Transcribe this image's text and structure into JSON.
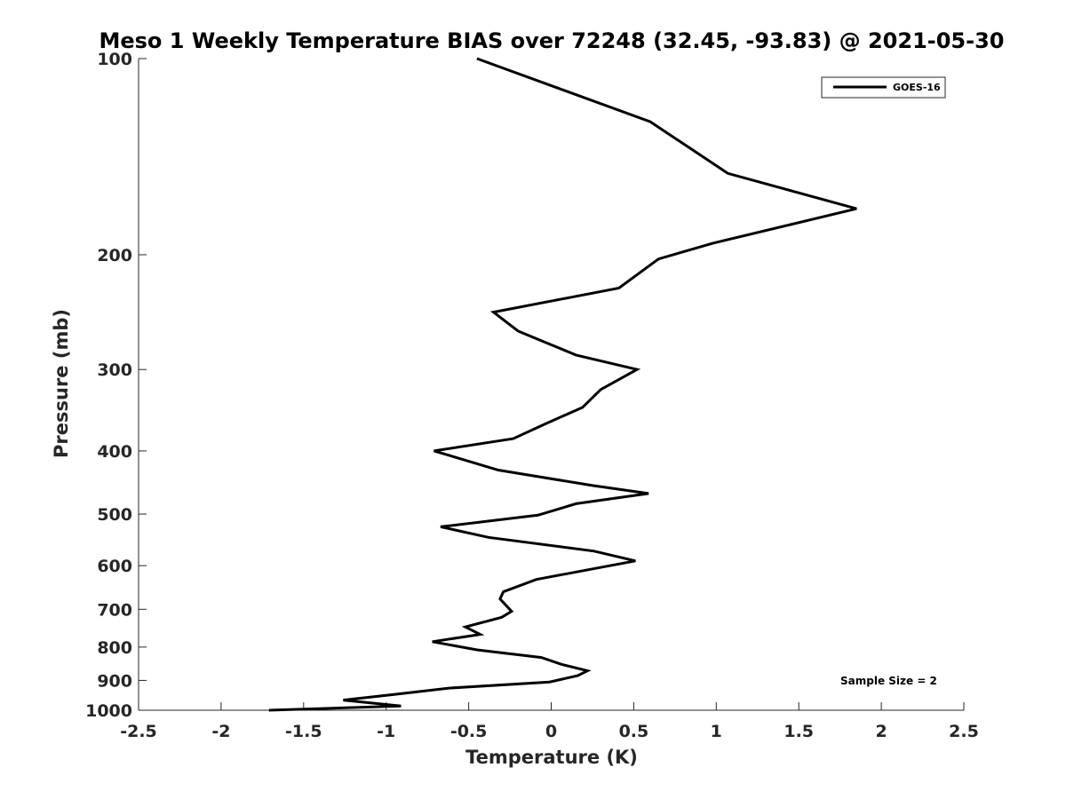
{
  "chart_data": {
    "type": "line",
    "title": "Meso 1 Weekly Temperature BIAS over 72248 (32.45, -93.83) @ 2021-05-30",
    "xlabel": "Temperature (K)",
    "ylabel": "Pressure (mb)",
    "xlim": [
      -2.5,
      2.5
    ],
    "ylim": [
      100,
      1000
    ],
    "y_scale": "log",
    "y_reversed": true,
    "x_ticks": [
      -2.5,
      -2,
      -1.5,
      -1,
      -0.5,
      0,
      0.5,
      1,
      1.5,
      2,
      2.5
    ],
    "x_tick_labels": [
      "-2.5",
      "-2",
      "-1.5",
      "-1",
      "-0.5",
      "0",
      "0.5",
      "1",
      "1.5",
      "2",
      "2.5"
    ],
    "y_ticks": [
      100,
      200,
      300,
      400,
      500,
      600,
      700,
      800,
      900,
      1000
    ],
    "y_tick_labels": [
      "100",
      "200",
      "300",
      "400",
      "500",
      "600",
      "700",
      "800",
      "900",
      "1000"
    ],
    "grid": false,
    "legend": {
      "position": "top-right",
      "entries": [
        "GOES-16"
      ]
    },
    "annotation": "Sample Size = 2",
    "series": [
      {
        "name": "GOES-16",
        "color": "#000000",
        "points": [
          [
            -0.45,
            100
          ],
          [
            0.6,
            125
          ],
          [
            1.07,
            150
          ],
          [
            1.85,
            170
          ],
          [
            0.98,
            192
          ],
          [
            0.65,
            203
          ],
          [
            0.41,
            225
          ],
          [
            -0.35,
            245
          ],
          [
            -0.2,
            262
          ],
          [
            0.15,
            285
          ],
          [
            0.52,
            300
          ],
          [
            0.3,
            322
          ],
          [
            0.19,
            343
          ],
          [
            -0.03,
            363
          ],
          [
            -0.23,
            383
          ],
          [
            -0.71,
            400
          ],
          [
            -0.32,
            428
          ],
          [
            0.25,
            452
          ],
          [
            0.59,
            465
          ],
          [
            0.15,
            482
          ],
          [
            -0.08,
            502
          ],
          [
            -0.67,
            523
          ],
          [
            -0.38,
            543
          ],
          [
            0.26,
            570
          ],
          [
            0.51,
            590
          ],
          [
            0.28,
            605
          ],
          [
            -0.09,
            630
          ],
          [
            -0.29,
            658
          ],
          [
            -0.31,
            675
          ],
          [
            -0.24,
            705
          ],
          [
            -0.3,
            720
          ],
          [
            -0.52,
            745
          ],
          [
            -0.43,
            765
          ],
          [
            -0.72,
            785
          ],
          [
            -0.45,
            808
          ],
          [
            -0.06,
            830
          ],
          [
            0.06,
            850
          ],
          [
            0.22,
            870
          ],
          [
            0.16,
            885
          ],
          [
            -0.01,
            905
          ],
          [
            -0.62,
            925
          ],
          [
            -0.94,
            945
          ],
          [
            -1.26,
            965
          ],
          [
            -0.91,
            985
          ],
          [
            -1.71,
            1000
          ]
        ]
      }
    ]
  }
}
